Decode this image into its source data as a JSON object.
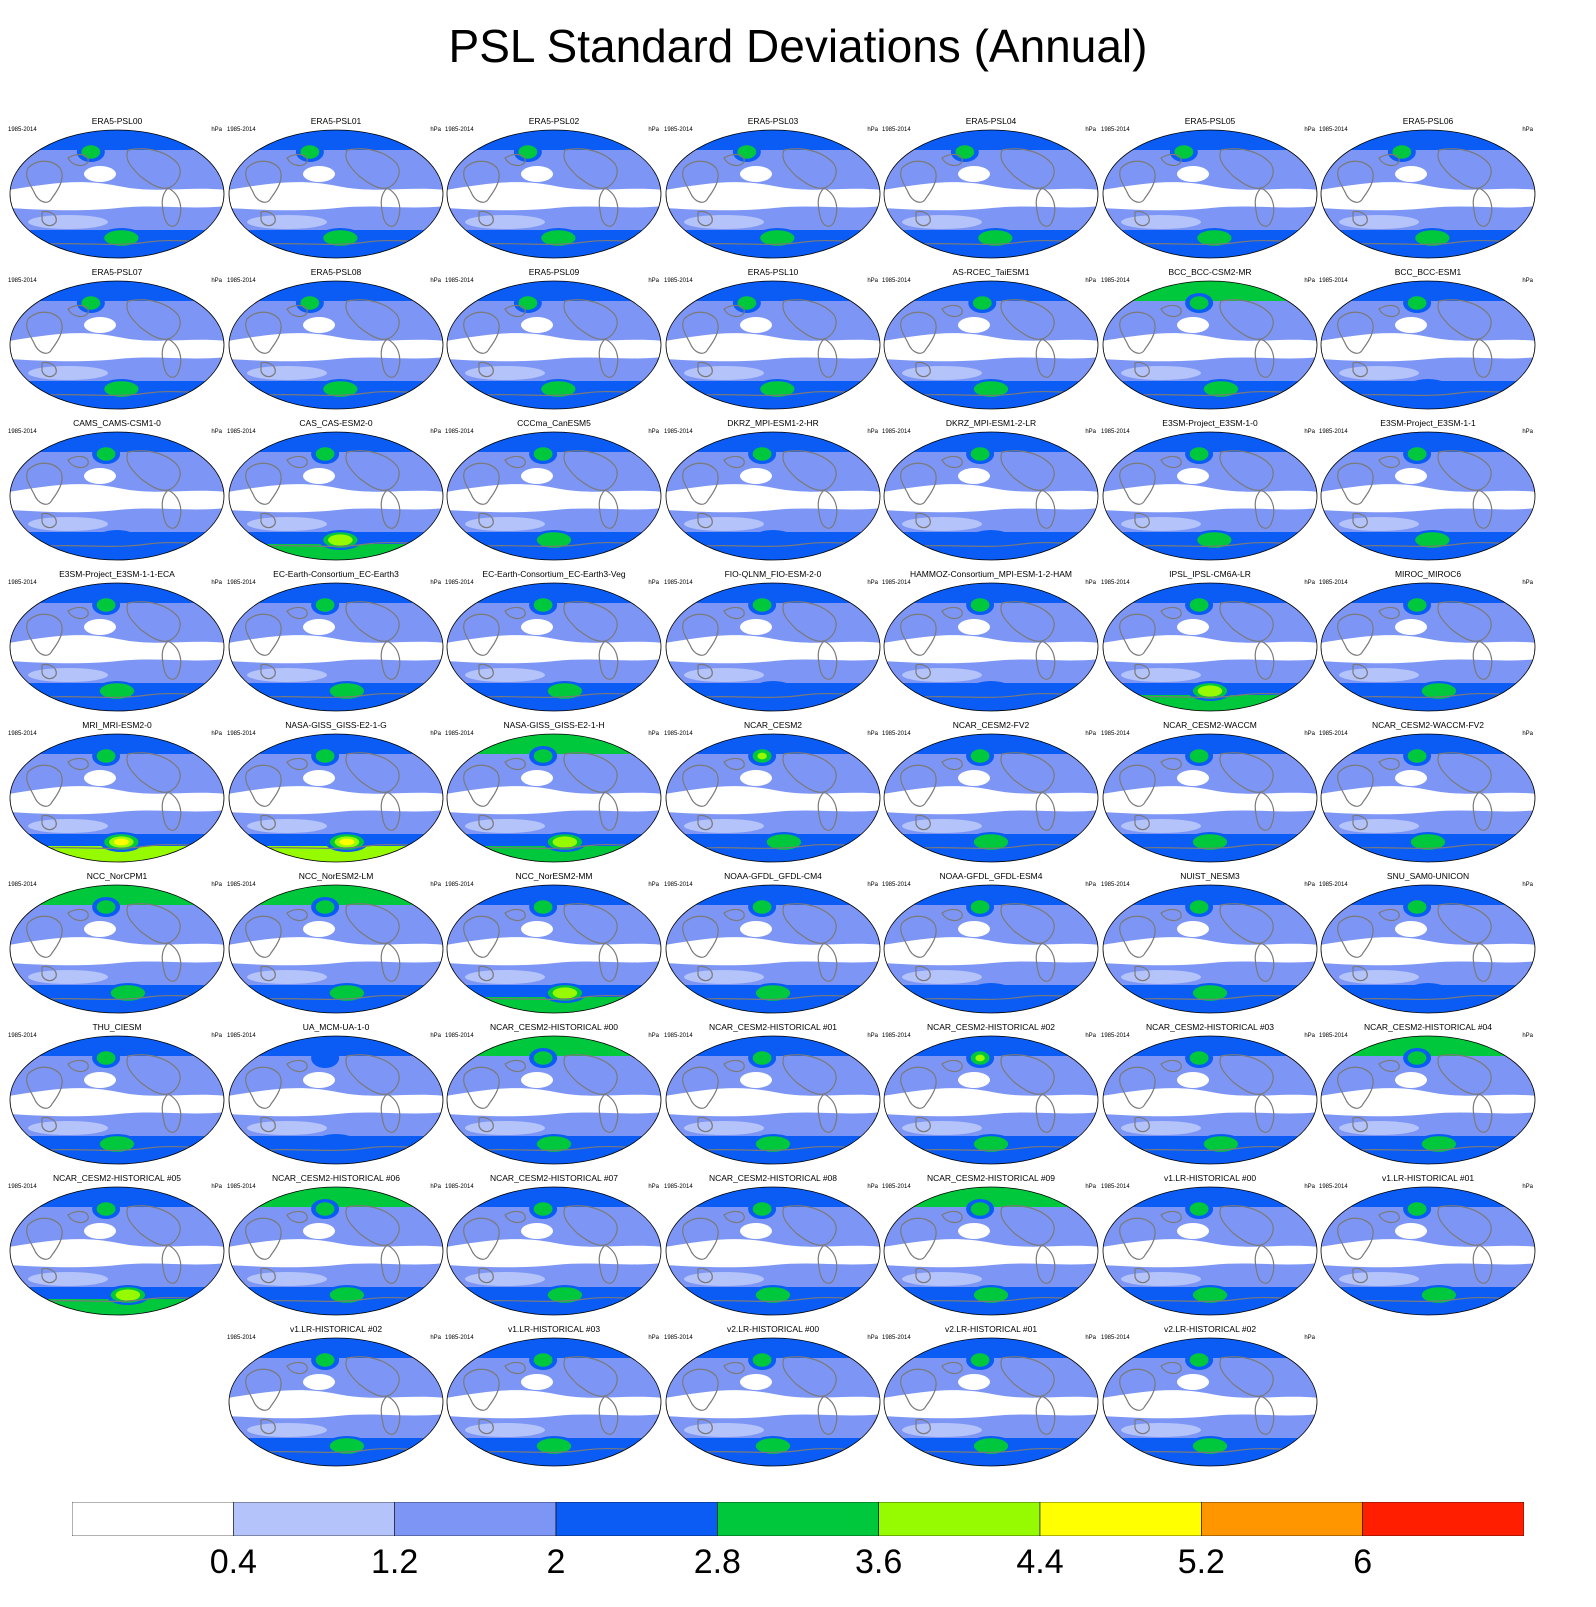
{
  "title": "PSL Standard Deviations (Annual)",
  "period_label": "1985-2014",
  "units_label": "hPa",
  "chart_data": {
    "type": "heatmap",
    "title": "PSL Standard Deviations (Annual)",
    "variable": "PSL standard deviation",
    "units": "hPa",
    "period": "1985-2014",
    "colorbar": {
      "levels": [
        0.4,
        1.2,
        2,
        2.8,
        3.6,
        4.4,
        5.2,
        6
      ],
      "tick_labels": [
        "0.4",
        "1.2",
        "2",
        "2.8",
        "3.6",
        "4.4",
        "5.2",
        "6"
      ],
      "colors": [
        "#ffffff",
        "#b4c3fa",
        "#7d96f5",
        "#0a5cf5",
        "#00c83c",
        "#96fa00",
        "#ffff00",
        "#ff9600",
        "#ff1e00"
      ]
    },
    "panels": [
      {
        "name": "ERA5-PSL00",
        "nh": 3.0,
        "nh_lon": 0.38,
        "so": 3.2,
        "so_lon": 0.52,
        "north_rim": 2.2
      },
      {
        "name": "ERA5-PSL01",
        "nh": 3.0,
        "nh_lon": 0.38,
        "so": 3.2,
        "so_lon": 0.52,
        "north_rim": 2.2
      },
      {
        "name": "ERA5-PSL02",
        "nh": 3.0,
        "nh_lon": 0.38,
        "so": 3.2,
        "so_lon": 0.52,
        "north_rim": 2.2
      },
      {
        "name": "ERA5-PSL03",
        "nh": 3.0,
        "nh_lon": 0.38,
        "so": 3.2,
        "so_lon": 0.52,
        "north_rim": 2.2
      },
      {
        "name": "ERA5-PSL04",
        "nh": 3.0,
        "nh_lon": 0.38,
        "so": 3.2,
        "so_lon": 0.52,
        "north_rim": 2.2
      },
      {
        "name": "ERA5-PSL05",
        "nh": 3.0,
        "nh_lon": 0.38,
        "so": 3.2,
        "so_lon": 0.52,
        "north_rim": 2.2
      },
      {
        "name": "ERA5-PSL06",
        "nh": 3.0,
        "nh_lon": 0.38,
        "so": 3.2,
        "so_lon": 0.52,
        "north_rim": 2.2
      },
      {
        "name": "ERA5-PSL07",
        "nh": 3.0,
        "nh_lon": 0.38,
        "so": 3.2,
        "so_lon": 0.52,
        "north_rim": 2.2
      },
      {
        "name": "ERA5-PSL08",
        "nh": 3.0,
        "nh_lon": 0.38,
        "so": 3.2,
        "so_lon": 0.52,
        "north_rim": 2.2
      },
      {
        "name": "ERA5-PSL09",
        "nh": 3.0,
        "nh_lon": 0.38,
        "so": 3.2,
        "so_lon": 0.52,
        "north_rim": 2.2
      },
      {
        "name": "ERA5-PSL10",
        "nh": 3.0,
        "nh_lon": 0.38,
        "so": 3.2,
        "so_lon": 0.52,
        "north_rim": 2.2
      },
      {
        "name": "AS-RCEC_TaiESM1",
        "nh": 3.4,
        "nh_lon": 0.46,
        "so": 2.9,
        "so_lon": 0.5,
        "north_rim": 2.2
      },
      {
        "name": "BCC_BCC-CSM2-MR",
        "nh": 2.9,
        "nh_lon": 0.45,
        "so": 2.9,
        "so_lon": 0.55,
        "north_rim": 3.0
      },
      {
        "name": "BCC_BCC-ESM1",
        "nh": 2.8,
        "nh_lon": 0.45,
        "so": 2.5,
        "so_lon": 0.5,
        "north_rim": 2.4
      },
      {
        "name": "CAMS_CAMS-CSM1-0",
        "nh": 2.8,
        "nh_lon": 0.45,
        "so": 2.7,
        "so_lon": 0.5,
        "north_rim": 2.0
      },
      {
        "name": "CAS_CAS-ESM2-0",
        "nh": 2.8,
        "nh_lon": 0.45,
        "so": 4.2,
        "so_lon": 0.52,
        "north_rim": 2.0
      },
      {
        "name": "CCCma_CanESM5",
        "nh": 2.8,
        "nh_lon": 0.45,
        "so": 2.8,
        "so_lon": 0.5,
        "north_rim": 2.0
      },
      {
        "name": "DKRZ_MPI-ESM1-2-HR",
        "nh": 2.8,
        "nh_lon": 0.45,
        "so": 2.6,
        "so_lon": 0.5,
        "north_rim": 2.0
      },
      {
        "name": "DKRZ_MPI-ESM1-2-LR",
        "nh": 3.3,
        "nh_lon": 0.45,
        "so": 2.7,
        "so_lon": 0.5,
        "north_rim": 2.2
      },
      {
        "name": "E3SM-Project_E3SM-1-0",
        "nh": 3.0,
        "nh_lon": 0.45,
        "so": 3.2,
        "so_lon": 0.52,
        "north_rim": 2.2
      },
      {
        "name": "E3SM-Project_E3SM-1-1",
        "nh": 2.9,
        "nh_lon": 0.45,
        "so": 3.1,
        "so_lon": 0.52,
        "north_rim": 2.2
      },
      {
        "name": "E3SM-Project_E3SM-1-1-ECA",
        "nh": 2.9,
        "nh_lon": 0.45,
        "so": 3.1,
        "so_lon": 0.5,
        "north_rim": 2.2
      },
      {
        "name": "EC-Earth-Consortium_EC-Earth3",
        "nh": 2.9,
        "nh_lon": 0.45,
        "so": 3.3,
        "so_lon": 0.55,
        "north_rim": 2.2
      },
      {
        "name": "EC-Earth-Consortium_EC-Earth3-Veg",
        "nh": 3.2,
        "nh_lon": 0.45,
        "so": 3.2,
        "so_lon": 0.55,
        "north_rim": 2.2
      },
      {
        "name": "FIO-QLNM_FIO-ESM-2-0",
        "nh": 2.9,
        "nh_lon": 0.45,
        "so": 2.7,
        "so_lon": 0.5,
        "north_rim": 2.2
      },
      {
        "name": "HAMMOZ-Consortium_MPI-ESM-1-2-HAM",
        "nh": 3.3,
        "nh_lon": 0.45,
        "so": 2.6,
        "so_lon": 0.5,
        "north_rim": 2.0
      },
      {
        "name": "IPSL_IPSL-CM6A-LR",
        "nh": 3.0,
        "nh_lon": 0.45,
        "so": 3.6,
        "so_lon": 0.5,
        "north_rim": 2.2
      },
      {
        "name": "MIROC_MIROC6",
        "nh": 3.0,
        "nh_lon": 0.45,
        "so": 3.2,
        "so_lon": 0.55,
        "north_rim": 2.2
      },
      {
        "name": "MRI_MRI-ESM2-0",
        "nh": 2.9,
        "nh_lon": 0.45,
        "so": 4.5,
        "so_lon": 0.52,
        "north_rim": 2.2
      },
      {
        "name": "NASA-GISS_GISS-E2-1-G",
        "nh": 2.9,
        "nh_lon": 0.45,
        "so": 4.6,
        "so_lon": 0.55,
        "north_rim": 2.4
      },
      {
        "name": "NASA-GISS_GISS-E2-1-H",
        "nh": 2.9,
        "nh_lon": 0.45,
        "so": 4.0,
        "so_lon": 0.55,
        "north_rim": 3.2
      },
      {
        "name": "NCAR_CESM2",
        "nh": 3.6,
        "nh_lon": 0.45,
        "so": 3.0,
        "so_lon": 0.55,
        "north_rim": 2.2
      },
      {
        "name": "NCAR_CESM2-FV2",
        "nh": 3.2,
        "nh_lon": 0.45,
        "so": 3.1,
        "so_lon": 0.5,
        "north_rim": 2.2
      },
      {
        "name": "NCAR_CESM2-WACCM",
        "nh": 3.2,
        "nh_lon": 0.45,
        "so": 3.2,
        "so_lon": 0.5,
        "north_rim": 2.2
      },
      {
        "name": "NCAR_CESM2-WACCM-FV2",
        "nh": 3.2,
        "nh_lon": 0.45,
        "so": 3.2,
        "so_lon": 0.5,
        "north_rim": 2.2
      },
      {
        "name": "NCC_NorCPM1",
        "nh": 2.9,
        "nh_lon": 0.45,
        "so": 3.2,
        "so_lon": 0.55,
        "north_rim": 3.0
      },
      {
        "name": "NCC_NorESM2-LM",
        "nh": 2.9,
        "nh_lon": 0.45,
        "so": 3.2,
        "so_lon": 0.55,
        "north_rim": 3.0
      },
      {
        "name": "NCC_NorESM2-MM",
        "nh": 3.2,
        "nh_lon": 0.45,
        "so": 3.6,
        "so_lon": 0.55,
        "north_rim": 2.4
      },
      {
        "name": "NOAA-GFDL_GFDL-CM4",
        "nh": 2.8,
        "nh_lon": 0.45,
        "so": 2.8,
        "so_lon": 0.5,
        "north_rim": 2.0
      },
      {
        "name": "NOAA-GFDL_GFDL-ESM4",
        "nh": 2.8,
        "nh_lon": 0.45,
        "so": 2.5,
        "so_lon": 0.5,
        "north_rim": 2.0
      },
      {
        "name": "NUIST_NESM3",
        "nh": 2.9,
        "nh_lon": 0.45,
        "so": 2.8,
        "so_lon": 0.5,
        "north_rim": 2.2
      },
      {
        "name": "SNU_SAM0-UNICON",
        "nh": 2.9,
        "nh_lon": 0.45,
        "so": 2.7,
        "so_lon": 0.5,
        "north_rim": 2.2
      },
      {
        "name": "THU_CIESM",
        "nh": 2.9,
        "nh_lon": 0.45,
        "so": 2.9,
        "so_lon": 0.5,
        "north_rim": 2.2
      },
      {
        "name": "UA_MCM-UA-1-0",
        "nh": 2.6,
        "nh_lon": 0.45,
        "so": 2.4,
        "so_lon": 0.5,
        "north_rim": 2.0
      },
      {
        "name": "NCAR_CESM2-HISTORICAL  #00",
        "nh": 3.4,
        "nh_lon": 0.45,
        "so": 3.0,
        "so_lon": 0.5,
        "north_rim": 2.9
      },
      {
        "name": "NCAR_CESM2-HISTORICAL  #01",
        "nh": 3.3,
        "nh_lon": 0.45,
        "so": 2.9,
        "so_lon": 0.5,
        "north_rim": 2.2
      },
      {
        "name": "NCAR_CESM2-HISTORICAL  #02",
        "nh": 3.7,
        "nh_lon": 0.45,
        "so": 2.9,
        "so_lon": 0.5,
        "north_rim": 2.2
      },
      {
        "name": "NCAR_CESM2-HISTORICAL  #03",
        "nh": 3.2,
        "nh_lon": 0.45,
        "so": 3.1,
        "so_lon": 0.55,
        "north_rim": 2.2
      },
      {
        "name": "NCAR_CESM2-HISTORICAL  #04",
        "nh": 3.0,
        "nh_lon": 0.45,
        "so": 3.1,
        "so_lon": 0.55,
        "north_rim": 2.9
      },
      {
        "name": "NCAR_CESM2-HISTORICAL  #05",
        "nh": 3.0,
        "nh_lon": 0.45,
        "so": 3.9,
        "so_lon": 0.55,
        "north_rim": 2.2
      },
      {
        "name": "NCAR_CESM2-HISTORICAL  #06",
        "nh": 3.2,
        "nh_lon": 0.45,
        "so": 3.0,
        "so_lon": 0.55,
        "north_rim": 3.0
      },
      {
        "name": "NCAR_CESM2-HISTORICAL  #07",
        "nh": 3.2,
        "nh_lon": 0.45,
        "so": 3.2,
        "so_lon": 0.55,
        "north_rim": 2.2
      },
      {
        "name": "NCAR_CESM2-HISTORICAL  #08",
        "nh": 3.3,
        "nh_lon": 0.45,
        "so": 3.0,
        "so_lon": 0.5,
        "north_rim": 2.2
      },
      {
        "name": "NCAR_CESM2-HISTORICAL  #09",
        "nh": 3.3,
        "nh_lon": 0.45,
        "so": 3.0,
        "so_lon": 0.5,
        "north_rim": 3.0
      },
      {
        "name": "v1.LR-HISTORICAL  #00",
        "nh": 3.2,
        "nh_lon": 0.45,
        "so": 2.8,
        "so_lon": 0.5,
        "north_rim": 2.2
      },
      {
        "name": "v1.LR-HISTORICAL  #01",
        "nh": 2.9,
        "nh_lon": 0.45,
        "so": 3.0,
        "so_lon": 0.55,
        "north_rim": 2.2
      },
      {
        "name": "v1.LR-HISTORICAL  #02",
        "nh": 2.9,
        "nh_lon": 0.45,
        "so": 3.1,
        "so_lon": 0.55,
        "north_rim": 2.2
      },
      {
        "name": "v1.LR-HISTORICAL  #03",
        "nh": 2.9,
        "nh_lon": 0.45,
        "so": 3.1,
        "so_lon": 0.5,
        "north_rim": 2.2
      },
      {
        "name": "v2.LR-HISTORICAL  #00",
        "nh": 2.9,
        "nh_lon": 0.45,
        "so": 2.8,
        "so_lon": 0.5,
        "north_rim": 2.2
      },
      {
        "name": "v2.LR-HISTORICAL  #01",
        "nh": 2.9,
        "nh_lon": 0.45,
        "so": 2.8,
        "so_lon": 0.5,
        "north_rim": 2.2
      },
      {
        "name": "v2.LR-HISTORICAL  #02",
        "nh": 2.9,
        "nh_lon": 0.45,
        "so": 3.2,
        "so_lon": 0.5,
        "north_rim": 2.2
      }
    ]
  }
}
